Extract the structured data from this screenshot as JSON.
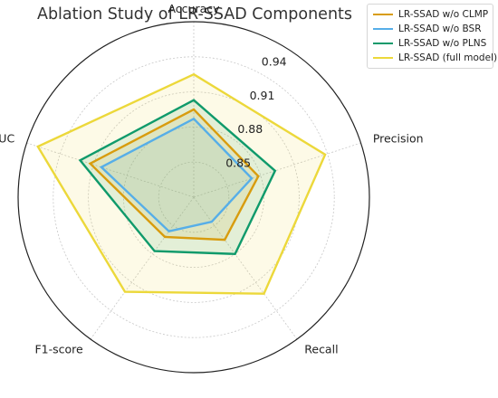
{
  "chart_data": {
    "type": "radar",
    "title": "Ablation Study of LR-SSAD Components",
    "axes": [
      "Accuracy",
      "Precision",
      "Recall",
      "F1-score",
      "AUC"
    ],
    "radial_range": [
      0.82,
      0.97
    ],
    "radial_ticks": [
      0.85,
      0.88,
      0.91,
      0.94
    ],
    "grid": true,
    "legend_position": "top-right",
    "series": [
      {
        "name": "LR-SSAD w/o CLMP",
        "color": "#d89c0e",
        "values": [
          0.895,
          0.878,
          0.865,
          0.862,
          0.913
        ]
      },
      {
        "name": "LR-SSAD w/o BSR",
        "color": "#56aee8",
        "values": [
          0.887,
          0.872,
          0.846,
          0.856,
          0.903
        ]
      },
      {
        "name": "LR-SSAD w/o PLNS",
        "color": "#0f9a6b",
        "values": [
          0.903,
          0.893,
          0.88,
          0.877,
          0.922
        ]
      },
      {
        "name": "LR-SSAD (full model)",
        "color": "#ecd83a",
        "values": [
          0.925,
          0.938,
          0.922,
          0.92,
          0.96
        ]
      }
    ]
  }
}
